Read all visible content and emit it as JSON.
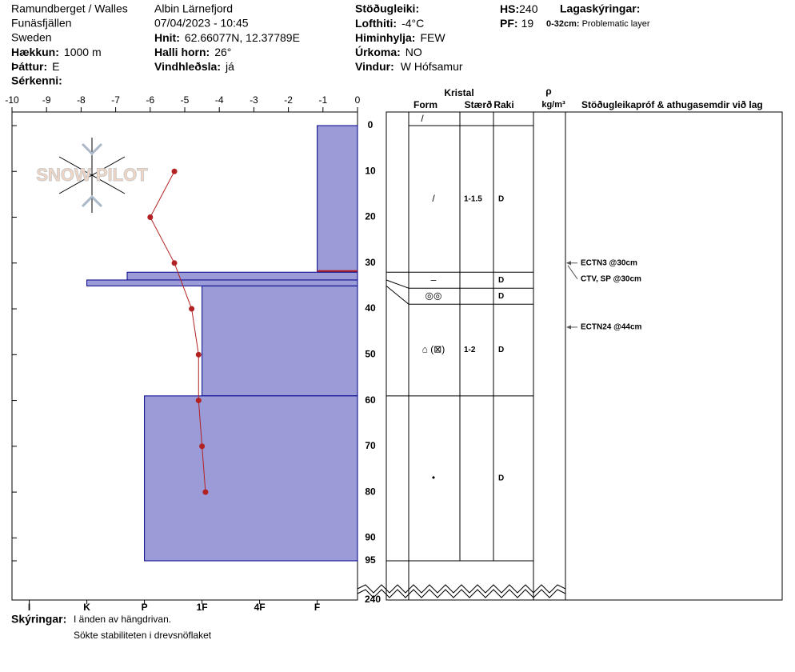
{
  "header": {
    "location": "Ramundberget / Walles",
    "region": "Funäsfjällen",
    "country": "Sweden",
    "elevation_label": "Hækkun:",
    "elevation": "1000 m",
    "aspect_label": "Þáttur:",
    "aspect": "E",
    "features_label": "Sérkenni:",
    "observer": "Albin  Lärnefjord",
    "datetime": "07/04/2023 - 10:45",
    "coords_label": "Hnit:",
    "coords": "62.66077N, 12.37789E",
    "slope_label": "Halli horn:",
    "slope": "26°",
    "wind_loading_label": "Vindhleðsla:",
    "wind_loading": "já",
    "stability_label": "Stöðugleiki:",
    "air_temp_label": "Lofthiti:",
    "air_temp": "-4°C",
    "sky_label": "Himinhylja:",
    "sky": "FEW",
    "precip_label": "Úrkoma:",
    "precip": "NO",
    "wind_label": "Vindur:",
    "wind": "W Hófsamur",
    "hs_label": "HS:",
    "hs": "240",
    "pf_label": "PF:",
    "pf": "19",
    "layer_notes_label": "Lagaskýringar:",
    "layer_note_range": "0-32cm:",
    "layer_note": "Problematic layer"
  },
  "logo": "SNOW PILOT",
  "chart_data": {
    "type": "snow-profile",
    "xlim": [
      -10,
      0
    ],
    "xticks": [
      -10,
      -9,
      -8,
      -7,
      -6,
      -5,
      -4,
      -3,
      -2,
      -1,
      0
    ],
    "ylim": [
      0,
      95
    ],
    "yticks": [
      0,
      10,
      20,
      30,
      40,
      50,
      60,
      70,
      80,
      90,
      95
    ],
    "y_break_tick": 240,
    "hardness_lim": [
      0.7,
      6.7
    ],
    "hardness_ticks": [
      {
        "value": 1,
        "label": "I"
      },
      {
        "value": 2,
        "label": "K"
      },
      {
        "value": 3,
        "label": "P"
      },
      {
        "value": 4,
        "label": "1F"
      },
      {
        "value": 5,
        "label": "4F"
      },
      {
        "value": 6,
        "label": "F"
      }
    ],
    "bar_color": "#9b9bd7",
    "line_color": "#b22222",
    "temperatures": [
      {
        "depth": 10,
        "temp": -5.3
      },
      {
        "depth": 20,
        "temp": -6.0
      },
      {
        "depth": 30,
        "temp": -5.3
      },
      {
        "depth": 40,
        "temp": -4.8
      },
      {
        "depth": 50,
        "temp": -4.6
      },
      {
        "depth": 60,
        "temp": -4.6
      },
      {
        "depth": 70,
        "temp": -4.5
      },
      {
        "depth": 80,
        "temp": -4.4
      }
    ],
    "surface_form": "/",
    "layers": [
      {
        "top": 0,
        "bottom": 32,
        "hardness": 6,
        "form": "/",
        "size": "1-1.5",
        "moisture": "D",
        "problematic": true
      },
      {
        "top": 32,
        "bottom": 33.7,
        "hardness": 2.7,
        "form": "–",
        "moisture": "D"
      },
      {
        "top": 33.7,
        "bottom": 35,
        "hardness": 2,
        "form": "◎◎",
        "moisture": "D"
      },
      {
        "top": 35,
        "bottom": 59,
        "hardness": 4,
        "form": "⌂ (⊠)",
        "size": "1-2",
        "moisture": "D"
      },
      {
        "top": 59,
        "bottom": 95,
        "hardness": 3,
        "form": "•",
        "moisture": "D"
      }
    ],
    "tests": [
      {
        "label": "ECTN3 @30cm",
        "depth": 30
      },
      {
        "label": "CTV, SP @30cm",
        "depth": 30
      },
      {
        "label": "ECTN24 @44cm",
        "depth": 44
      }
    ],
    "columns": {
      "crystal": "Kristal",
      "form": "Form",
      "size": "Stærð",
      "moisture": "Raki",
      "density": "ρ",
      "density_unit": "kg/m³",
      "comments": "Stöðugleikapróf & athugasemdir við lag"
    }
  },
  "notes": {
    "label": "Skýringar:",
    "lines": [
      "I änden av hängdrivan.",
      "Sökte stabiliteten i drevsnöflaket"
    ]
  }
}
